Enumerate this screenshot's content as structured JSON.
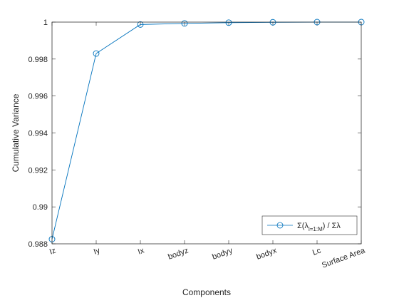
{
  "chart_data": {
    "type": "line",
    "title": "",
    "xlabel": "Components",
    "ylabel": "Cumulative Variance",
    "categories": [
      "Iz",
      "Iy",
      "Ix",
      "bodyz",
      "bodyy",
      "bodyx",
      "Lc",
      "Surface Area"
    ],
    "series": [
      {
        "name": "Σ(λ_{i=1:M}) / Σλ",
        "values": [
          0.98825,
          0.9983,
          0.99987,
          0.99993,
          0.99997,
          0.99999,
          1.0,
          1.0
        ],
        "color": "#0072BD",
        "marker": "circle"
      }
    ],
    "ylim": [
      0.988,
      1.0
    ],
    "yticks": [
      0.988,
      0.99,
      0.992,
      0.994,
      0.996,
      0.998,
      1
    ],
    "ytick_labels": [
      "0.988",
      "0.99",
      "0.992",
      "0.994",
      "0.996",
      "0.998",
      "1"
    ],
    "grid": false,
    "legend_position": "bottom-right",
    "legend": {
      "base": "Σ(λ",
      "subscript": "i=1:M",
      "suffix": ") / Σλ"
    }
  }
}
